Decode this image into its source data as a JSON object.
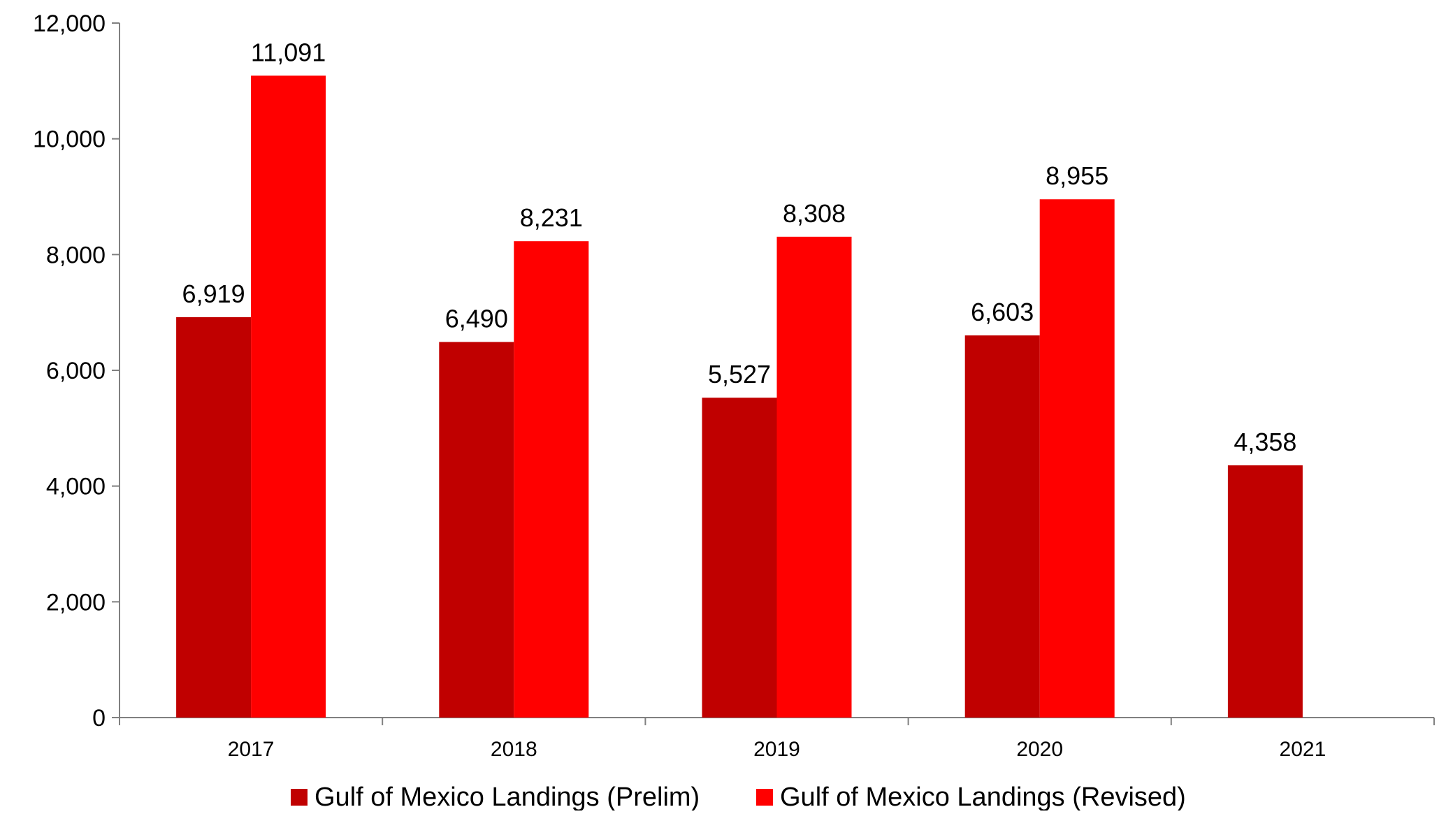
{
  "chart_data": {
    "type": "bar",
    "title": "",
    "xlabel": "",
    "ylabel": "",
    "categories": [
      "2017",
      "2018",
      "2019",
      "2020",
      "2021"
    ],
    "ylim": [
      0,
      12000
    ],
    "yticks": [
      0,
      2000,
      4000,
      6000,
      8000,
      10000,
      12000
    ],
    "ytick_labels": [
      "0",
      "2,000",
      "4,000",
      "6,000",
      "8,000",
      "10,000",
      "12,000"
    ],
    "grid": false,
    "legend": "bottom",
    "series": [
      {
        "name": "Gulf of Mexico Landings (Prelim)",
        "color": "#C00000",
        "values": [
          6919,
          6490,
          5527,
          6603,
          4358
        ],
        "labels": [
          "6,919",
          "6,490",
          "5,527",
          "6,603",
          "4,358"
        ]
      },
      {
        "name": "Gulf of Mexico Landings (Revised)",
        "color": "#FF0000",
        "values": [
          11091,
          8231,
          8308,
          8955,
          null
        ],
        "labels": [
          "11,091",
          "8,231",
          "8,308",
          "8,955",
          ""
        ]
      }
    ]
  }
}
